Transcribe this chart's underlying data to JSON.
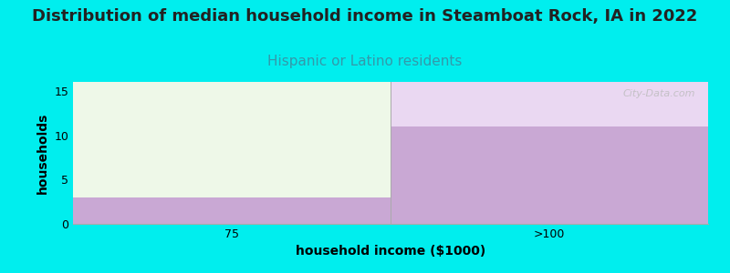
{
  "title": "Distribution of median household income in Steamboat Rock, IA in 2022",
  "subtitle": "Hispanic or Latino residents",
  "xlabel": "household income ($1000)",
  "ylabel": "households",
  "background_color": "#00EEEE",
  "plot_bg_color": "#FFFFFF",
  "bar_categories": [
    "75",
    ">100"
  ],
  "bar_values": [
    3,
    11
  ],
  "bar_color_solid": "#C9A8D4",
  "bar_color_light_green": "#EEF8E8",
  "bar_color_light_purple": "#EAD8F2",
  "ylim": [
    0,
    16
  ],
  "yticks": [
    0,
    5,
    10,
    15
  ],
  "title_fontsize": 13,
  "subtitle_fontsize": 11,
  "subtitle_color": "#3399AA",
  "axis_label_fontsize": 10,
  "watermark": "City-Data.com",
  "grid_color": "#DDDDDD",
  "tick_fontsize": 9
}
